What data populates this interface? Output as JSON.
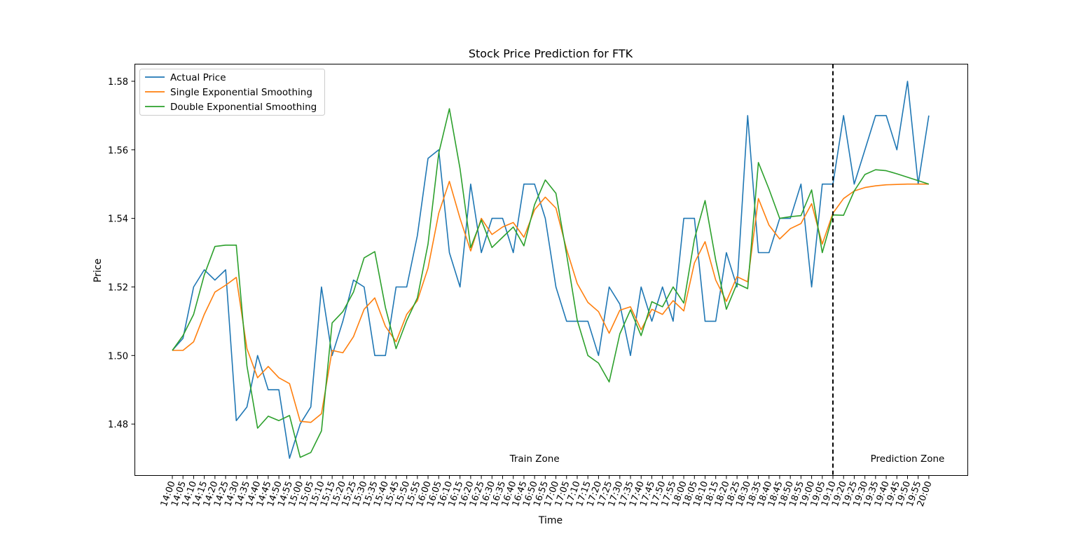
{
  "chart_data": {
    "type": "line",
    "title": "Stock Price Prediction for FTK",
    "xlabel": "Time",
    "ylabel": "Price",
    "ylim": [
      1.465,
      1.585
    ],
    "yticks": [
      1.48,
      1.5,
      1.52,
      1.54,
      1.56,
      1.58
    ],
    "x": [
      "14:00",
      "14:05",
      "14:10",
      "14:15",
      "14:20",
      "14:25",
      "14:30",
      "14:35",
      "14:40",
      "14:45",
      "14:50",
      "14:55",
      "15:00",
      "15:05",
      "15:10",
      "15:15",
      "15:20",
      "15:25",
      "15:30",
      "15:35",
      "15:40",
      "15:45",
      "15:50",
      "15:55",
      "16:00",
      "16:05",
      "16:10",
      "16:15",
      "16:20",
      "16:25",
      "16:30",
      "16:35",
      "16:40",
      "16:45",
      "16:50",
      "16:55",
      "17:00",
      "17:05",
      "17:10",
      "17:15",
      "17:20",
      "17:25",
      "17:30",
      "17:35",
      "17:40",
      "17:45",
      "17:50",
      "17:55",
      "18:00",
      "18:05",
      "18:10",
      "18:15",
      "18:20",
      "18:25",
      "18:30",
      "18:35",
      "18:40",
      "18:45",
      "18:50",
      "18:55",
      "19:00",
      "19:05",
      "19:10",
      "19:20",
      "19:25",
      "19:30",
      "19:35",
      "19:40",
      "19:45",
      "19:50",
      "19:55",
      "20:00"
    ],
    "series": [
      {
        "name": "Actual Price",
        "color": "#1f77b4",
        "values": [
          1.5015,
          1.505,
          1.52,
          1.525,
          1.522,
          1.525,
          1.481,
          1.485,
          1.5,
          1.49,
          1.49,
          1.47,
          1.48,
          1.485,
          1.52,
          1.5,
          1.51,
          1.522,
          1.52,
          1.5,
          1.5,
          1.52,
          1.52,
          1.535,
          1.5575,
          1.56,
          1.53,
          1.52,
          1.55,
          1.53,
          1.54,
          1.54,
          1.53,
          1.55,
          1.55,
          1.54,
          1.52,
          1.51,
          1.51,
          1.51,
          1.5,
          1.52,
          1.515,
          1.5,
          1.52,
          1.51,
          1.52,
          1.51,
          1.54,
          1.54,
          1.51,
          1.51,
          1.53,
          1.52,
          1.57,
          1.53,
          1.53,
          1.54,
          1.54,
          1.55,
          1.52,
          1.55,
          1.55,
          1.57,
          1.55,
          1.56,
          1.57,
          1.57,
          1.56,
          1.58,
          1.55,
          1.57
        ]
      },
      {
        "name": "Single Exponential Smoothing",
        "color": "#ff7f0e",
        "values": [
          1.5015,
          1.5015,
          1.504,
          1.512,
          1.5185,
          1.5205,
          1.5228,
          1.502,
          1.4935,
          1.4968,
          1.4935,
          1.4918,
          1.4808,
          1.4805,
          1.483,
          1.5015,
          1.5008,
          1.5055,
          1.5135,
          1.5168,
          1.5085,
          1.504,
          1.512,
          1.516,
          1.5255,
          1.5415,
          1.5508,
          1.54,
          1.5305,
          1.54,
          1.5353,
          1.5375,
          1.5388,
          1.5345,
          1.5425,
          1.5462,
          1.543,
          1.531,
          1.521,
          1.5155,
          1.5128,
          1.5065,
          1.5132,
          1.5142,
          1.5075,
          1.5135,
          1.512,
          1.516,
          1.513,
          1.527,
          1.5332,
          1.522,
          1.5158,
          1.523,
          1.5215,
          1.5458,
          1.538,
          1.534,
          1.537,
          1.5385,
          1.5443,
          1.5325,
          1.5415,
          1.5458,
          1.548,
          1.549,
          1.5495,
          1.5498,
          1.5499,
          1.55,
          1.55,
          1.55
        ]
      },
      {
        "name": "Double Exponential Smoothing",
        "color": "#2ca02c",
        "values": [
          1.5015,
          1.5058,
          1.512,
          1.5235,
          1.5318,
          1.5322,
          1.5322,
          1.497,
          1.4788,
          1.4823,
          1.481,
          1.4825,
          1.4703,
          1.4717,
          1.478,
          1.5095,
          1.5128,
          1.5185,
          1.5285,
          1.5303,
          1.514,
          1.502,
          1.5102,
          1.5168,
          1.5325,
          1.559,
          1.572,
          1.5545,
          1.5315,
          1.5395,
          1.5315,
          1.5345,
          1.5375,
          1.532,
          1.544,
          1.5512,
          1.5473,
          1.5295,
          1.5103,
          1.5,
          1.4978,
          1.4923,
          1.5063,
          1.5133,
          1.5058,
          1.5157,
          1.5142,
          1.52,
          1.5153,
          1.534,
          1.5452,
          1.5278,
          1.5135,
          1.521,
          1.5195,
          1.5563,
          1.5485,
          1.54,
          1.5405,
          1.5408,
          1.5483,
          1.53,
          1.541,
          1.5409,
          1.548,
          1.5528,
          1.5542,
          1.5539,
          1.553,
          1.552,
          1.551,
          1.55
        ]
      }
    ],
    "legend": "upper left",
    "grid": false,
    "annotations": [
      {
        "text": "Train Zone",
        "x": "16:50",
        "y": 1.47
      },
      {
        "text": "Prediction Zone",
        "x": "19:50",
        "y": 1.47
      }
    ],
    "split_line_x": "19:10"
  }
}
